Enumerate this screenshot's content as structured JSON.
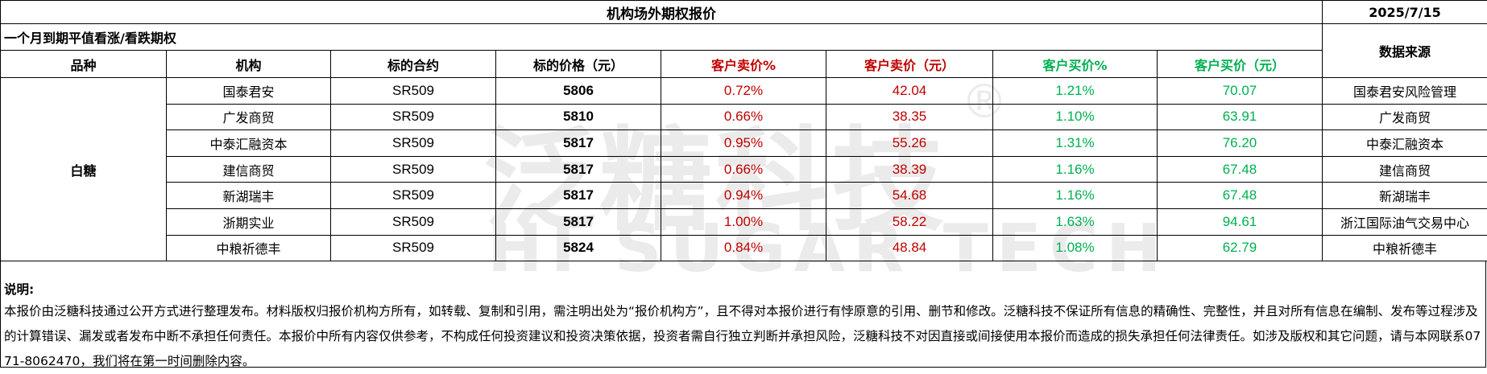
{
  "title": "机构场外期权报价",
  "date": "2025/7/15",
  "subtitle": "一个月到期平值看涨/看跌期权",
  "source_header": "数据来源",
  "headers": [
    "品种",
    "机构",
    "标的合约",
    "标的价格（元）",
    "客户卖价%",
    "客户卖价（元）",
    "客户买价%",
    "客户买价（元）"
  ],
  "variety": "白糖",
  "rows": [
    {
      "institution": "国泰君安",
      "contract": "SR509",
      "price": "5806",
      "sell_pct": "0.72%",
      "sell": "42.04",
      "buy_pct": "1.21%",
      "buy": "70.07",
      "source": "国泰君安风险管理"
    },
    {
      "institution": "广发商贸",
      "contract": "SR509",
      "price": "5810",
      "sell_pct": "0.66%",
      "sell": "38.35",
      "buy_pct": "1.10%",
      "buy": "63.91",
      "source": "广发商贸"
    },
    {
      "institution": "中泰汇融资本",
      "contract": "SR509",
      "price": "5817",
      "sell_pct": "0.95%",
      "sell": "55.26",
      "buy_pct": "1.31%",
      "buy": "76.20",
      "source": "中泰汇融资本"
    },
    {
      "institution": "建信商贸",
      "contract": "SR509",
      "price": "5817",
      "sell_pct": "0.66%",
      "sell": "38.39",
      "buy_pct": "1.16%",
      "buy": "67.48",
      "source": "建信商贸"
    },
    {
      "institution": "新湖瑞丰",
      "contract": "SR509",
      "price": "5817",
      "sell_pct": "0.94%",
      "sell": "54.68",
      "buy_pct": "1.16%",
      "buy": "67.48",
      "source": "新湖瑞丰"
    },
    {
      "institution": "浙期实业",
      "contract": "SR509",
      "price": "5817",
      "sell_pct": "1.00%",
      "sell": "58.22",
      "buy_pct": "1.63%",
      "buy": "94.61",
      "source": "浙江国际油气交易中心"
    },
    {
      "institution": "中粮祈德丰",
      "contract": "SR509",
      "price": "5824",
      "sell_pct": "0.84%",
      "sell": "48.84",
      "buy_pct": "1.08%",
      "buy": "62.79",
      "source": "中粮祈德丰"
    }
  ],
  "notes": {
    "heading": "说明:",
    "text": "本报价由泛糖科技通过公开方式进行整理发布。材料版权归报价机构方所有，如转载、复制和引用，需注明出处为“报价机构方”，且不得对本报价进行有悖原意的引用、删节和修改。泛糖科技不保证所有信息的精确性、完整性，并且对所有信息在编制、发布等过程涉及的计算错误、漏发或者发布中断不承担任何责任。本报价中所有内容仅供参考，不构成任何投资建议和投资决策依据，投资者需自行独立判断并承担风险，泛糖科技不对因直接或间接使用本报价而造成的损失承担任何法律责任。如涉及版权和其它问题，请与本网联系0771-8062470，我们将在第一时间删除内容。"
  },
  "watermark": {
    "cn": "泛糖科技",
    "mark": "®",
    "en": "HI SUGAR TECH"
  },
  "colors": {
    "sell": "#c00000",
    "buy": "#00b050"
  }
}
